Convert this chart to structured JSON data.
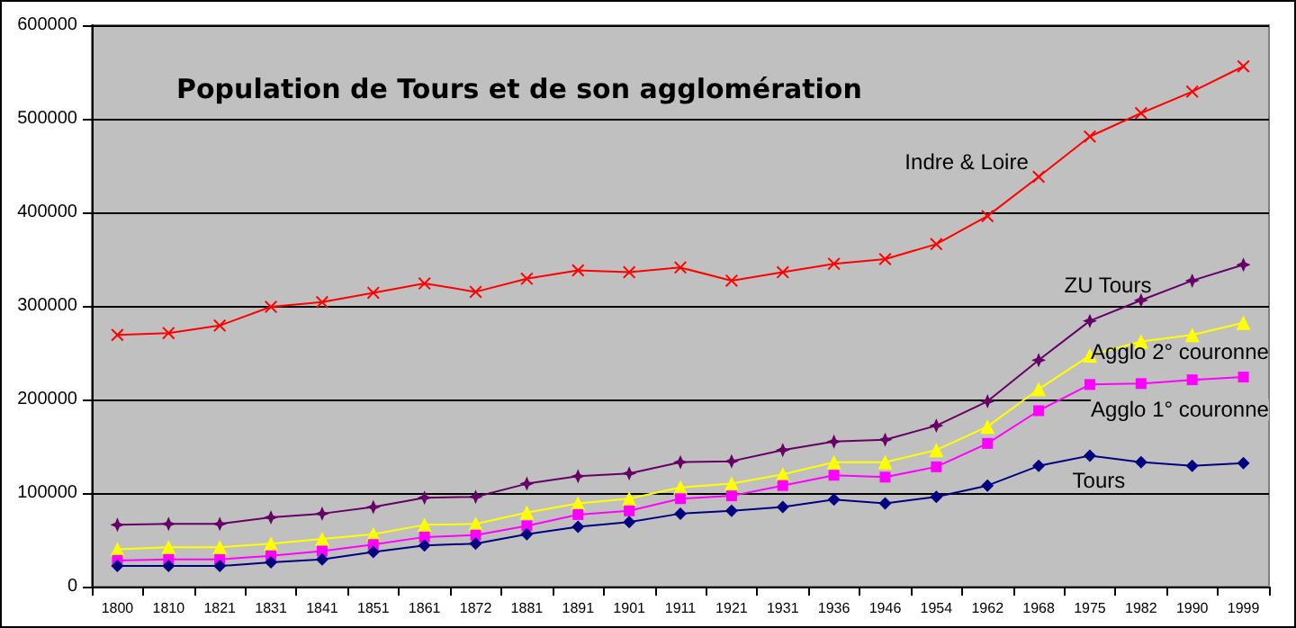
{
  "chart_data": {
    "type": "line",
    "title": "Population de Tours et de son agglomération",
    "categories": [
      "1800",
      "1810",
      "1821",
      "1831",
      "1841",
      "1851",
      "1861",
      "1872",
      "1881",
      "1891",
      "1901",
      "1911",
      "1921",
      "1931",
      "1936",
      "1946",
      "1954",
      "1962",
      "1968",
      "1975",
      "1982",
      "1990",
      "1999"
    ],
    "series": [
      {
        "name": "Indre & Loire",
        "color": "#ff0000",
        "marker": "cross",
        "values": [
          269000,
          271000,
          279000,
          299000,
          304000,
          314000,
          324000,
          315000,
          329000,
          338000,
          336000,
          341000,
          327000,
          336000,
          345000,
          350000,
          366000,
          396000,
          438000,
          481000,
          506000,
          529000,
          556000
        ]
      },
      {
        "name": "ZU Tours",
        "color": "#660066",
        "marker": "star",
        "values": [
          66000,
          67000,
          67000,
          74000,
          78000,
          85000,
          95000,
          96000,
          110000,
          118000,
          121000,
          133000,
          134000,
          146000,
          155000,
          157000,
          172000,
          198000,
          242000,
          284000,
          306000,
          327000,
          344000
        ]
      },
      {
        "name": "Agglo 2° couronne",
        "color": "#ffff00",
        "marker": "triangle",
        "values": [
          40000,
          42000,
          42000,
          46000,
          51000,
          56000,
          66000,
          67000,
          79000,
          89000,
          94000,
          106000,
          110000,
          120000,
          133000,
          133000,
          146000,
          171000,
          211000,
          247000,
          262000,
          269000,
          282000
        ]
      },
      {
        "name": "Agglo 1° couronne",
        "color": "#ff00ff",
        "marker": "square",
        "values": [
          28000,
          29000,
          29000,
          33000,
          38000,
          45000,
          53000,
          55000,
          65000,
          77000,
          81000,
          94000,
          97000,
          108000,
          119000,
          117000,
          128000,
          153000,
          188000,
          216000,
          217000,
          221000,
          224000
        ]
      },
      {
        "name": "Tours",
        "color": "#000080",
        "marker": "diamond",
        "values": [
          22000,
          22000,
          22000,
          26000,
          29000,
          37000,
          44000,
          46000,
          56000,
          64000,
          69000,
          78000,
          81000,
          85000,
          93000,
          89000,
          96000,
          108000,
          129000,
          140000,
          133000,
          129000,
          132000
        ]
      }
    ],
    "ylim": [
      0,
      600000
    ],
    "yticks": [
      0,
      100000,
      200000,
      300000,
      400000,
      500000,
      600000
    ],
    "grid": "y",
    "legend": false,
    "line_style": "solid"
  }
}
